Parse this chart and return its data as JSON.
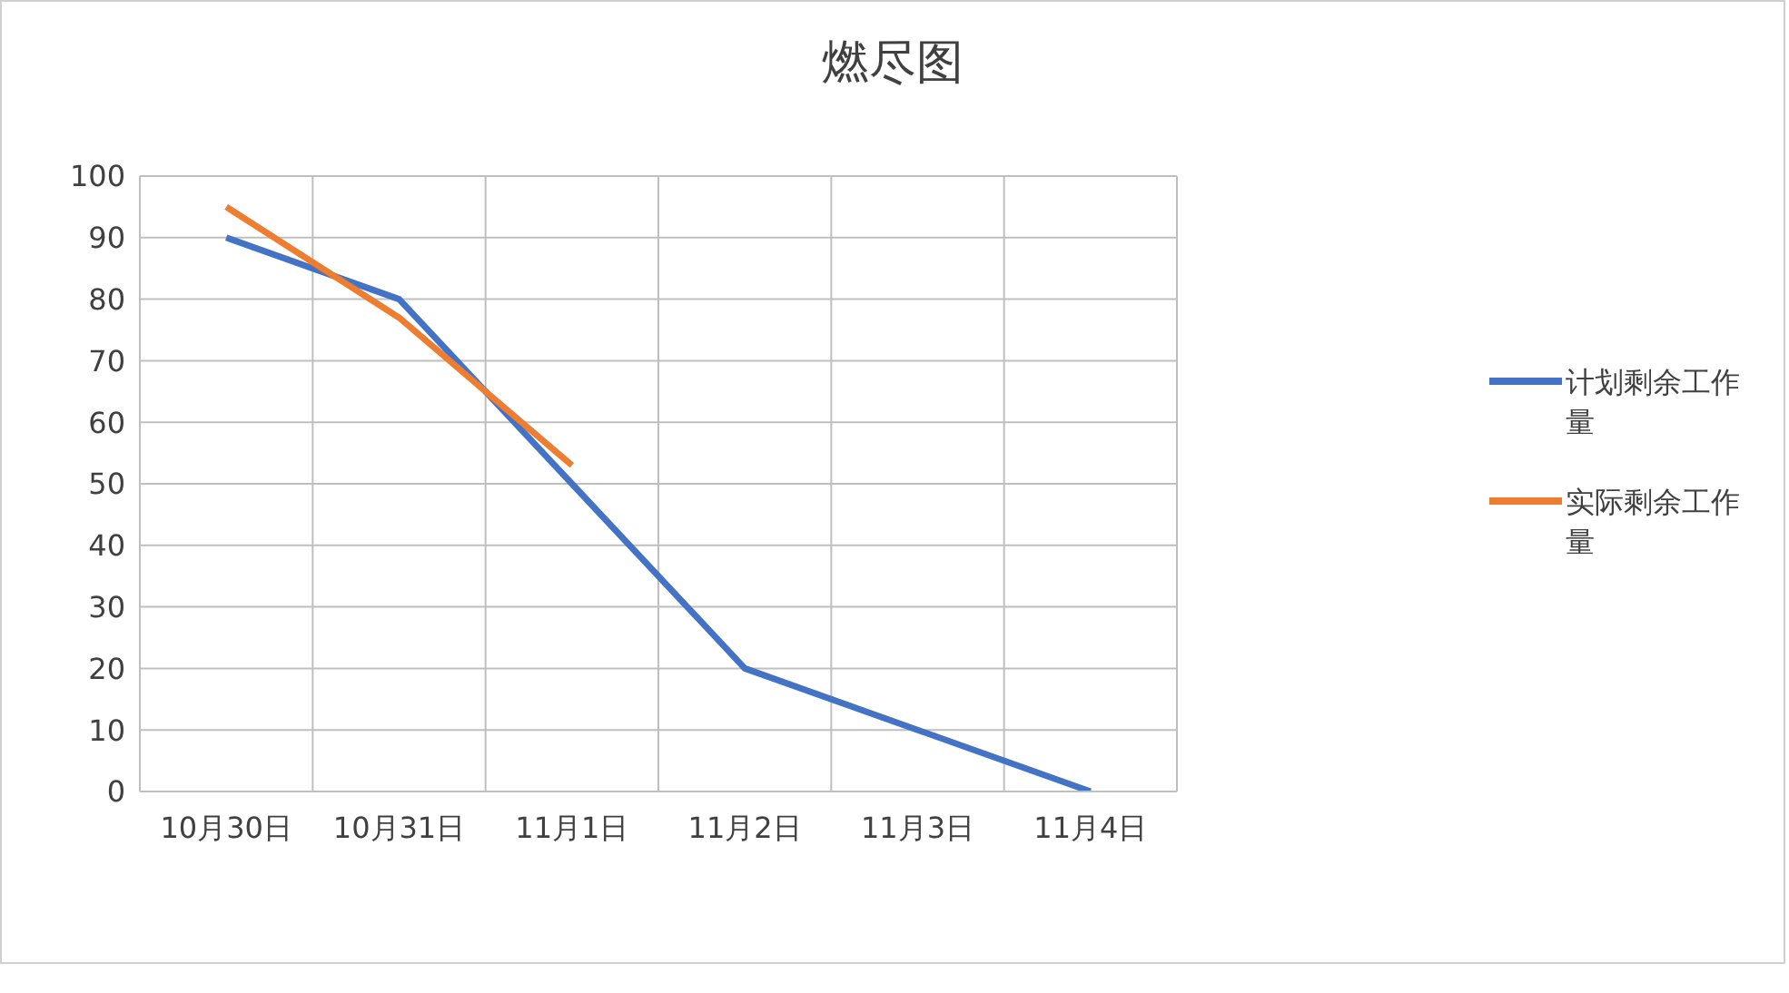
{
  "chart_data": {
    "type": "line",
    "title": "燃尽图",
    "categories": [
      "10月30日",
      "10月31日",
      "11月1日",
      "11月2日",
      "11月3日",
      "11月4日"
    ],
    "series": [
      {
        "name": "计划剩余工作量",
        "color": "#4472c4",
        "values": [
          90,
          80,
          50,
          20,
          10,
          0
        ]
      },
      {
        "name": "实际剩余工作量",
        "color": "#ed7d31",
        "values": [
          95,
          77,
          53,
          null,
          null,
          null
        ]
      }
    ],
    "ylim": [
      0,
      100
    ],
    "yticks": [
      0,
      10,
      20,
      30,
      40,
      50,
      60,
      70,
      80,
      90,
      100
    ],
    "grid": true,
    "legend": "right",
    "marker": "none",
    "line_style": "solid"
  }
}
